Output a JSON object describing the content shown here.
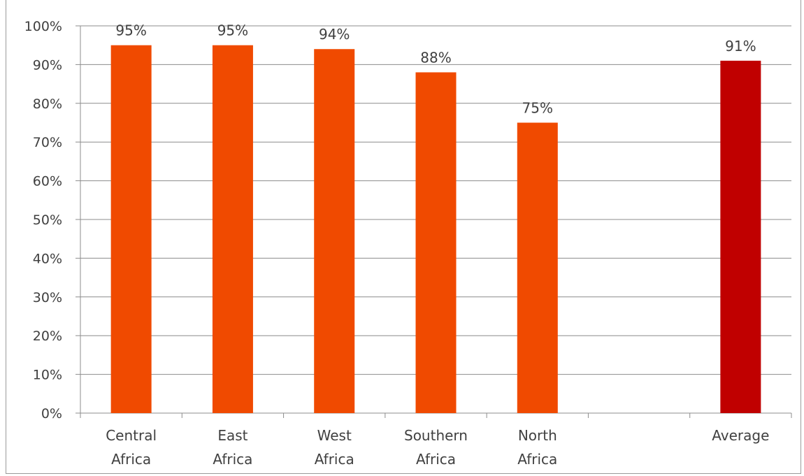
{
  "chart_data": {
    "type": "bar",
    "title": "",
    "xlabel": "",
    "ylabel": "",
    "ylim": [
      0,
      100
    ],
    "yticks": [
      "0%",
      "10%",
      "20%",
      "30%",
      "40%",
      "50%",
      "60%",
      "70%",
      "80%",
      "90%",
      "100%"
    ],
    "grid": true,
    "categories": [
      [
        "Central",
        "Africa"
      ],
      [
        "East",
        "Africa"
      ],
      [
        "West",
        "Africa"
      ],
      [
        "Southern",
        "Africa"
      ],
      [
        "North",
        "Africa"
      ],
      [],
      [
        "Average"
      ]
    ],
    "values": [
      95,
      95,
      94,
      88,
      75,
      null,
      91
    ],
    "data_labels": [
      "95%",
      "95%",
      "94%",
      "88%",
      "75%",
      "",
      "91%"
    ],
    "colors": {
      "bar": "#f04a00",
      "average_bar": "#c00000",
      "grid": "#8c8c8c",
      "axis": "#8c8c8c"
    }
  }
}
